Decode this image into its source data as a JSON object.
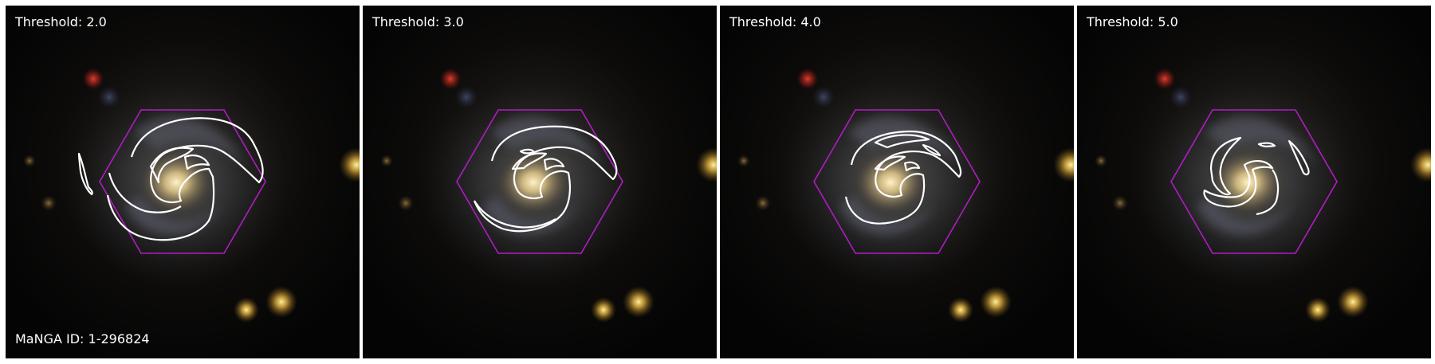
{
  "galaxy_id_label": "MaNGA ID: 1-296824",
  "colors": {
    "hexagon": "#b01cc4",
    "contour": "#ffffff",
    "background": "#050505"
  },
  "panels": [
    {
      "threshold_label": "Threshold: 2.0",
      "threshold": 2.0
    },
    {
      "threshold_label": "Threshold: 3.0",
      "threshold": 3.0
    },
    {
      "threshold_label": "Threshold: 4.0",
      "threshold": 4.0
    },
    {
      "threshold_label": "Threshold: 5.0",
      "threshold": 5.0
    }
  ]
}
